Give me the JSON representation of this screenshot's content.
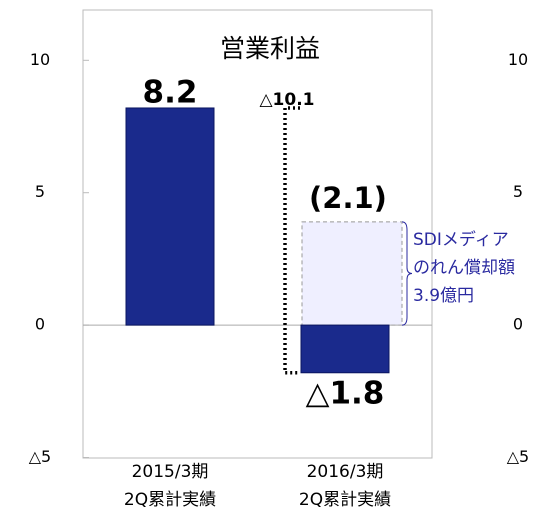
{
  "chart_data": {
    "type": "bar",
    "title": "営業利益",
    "categories": [
      "2015/3期\n2Q累計実績",
      "2016/3期\n2Q累計実績"
    ],
    "values": [
      8.2,
      -1.8
    ],
    "value_labels": [
      "8.2",
      "△1.8"
    ],
    "color": "#1a2a8c",
    "ylim": [
      -5,
      11.9
    ],
    "yticks": [
      {
        "value": -5,
        "label": "△5"
      },
      0,
      5,
      10
    ],
    "goodwill": {
      "value": 3.9,
      "label": "SDIメディア\nのれん償却額\n3.9億円",
      "color": "#efefff"
    },
    "adjusted": {
      "value": 2.1,
      "label": "(2.1)"
    },
    "difference": {
      "value": -10.1,
      "label": "△10.1"
    }
  }
}
